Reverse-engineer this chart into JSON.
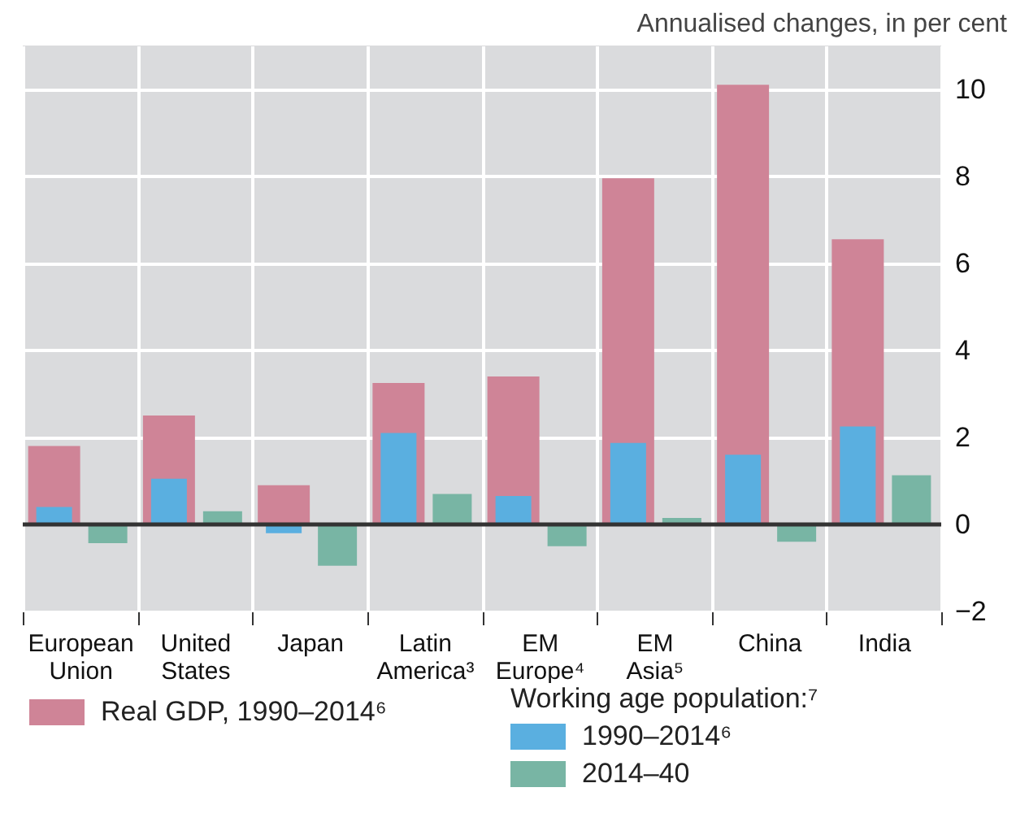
{
  "chart_data": {
    "type": "bar",
    "ylabel": "Annualised changes, in per cent",
    "categories": [
      "European Union",
      "United States",
      "Japan",
      "Latin America³",
      "EM Europe⁴",
      "EM Asia⁵",
      "China",
      "India"
    ],
    "series": [
      {
        "name": "Real GDP, 1990–2014⁶",
        "color": "#cf8497",
        "values": [
          1.8,
          2.5,
          0.9,
          3.25,
          3.4,
          7.95,
          10.1,
          6.55
        ]
      },
      {
        "name": "1990–2014⁶",
        "color": "#5aafe0",
        "values": [
          0.4,
          1.05,
          -0.2,
          2.1,
          0.65,
          1.87,
          1.6,
          2.25
        ]
      },
      {
        "name": "2014–40",
        "color": "#78b5a4",
        "values": [
          -0.43,
          0.3,
          -0.95,
          0.7,
          -0.5,
          0.15,
          -0.4,
          1.13
        ]
      }
    ],
    "legend_title": "Working age population:⁷",
    "ylim": [
      -2,
      11
    ],
    "yticks": [
      -2,
      0,
      2,
      4,
      6,
      8,
      10
    ],
    "grid": true,
    "legend": "bottom",
    "ref_lines": [
      {
        "axis": "y",
        "value": 0,
        "color": "#333333"
      }
    ]
  }
}
